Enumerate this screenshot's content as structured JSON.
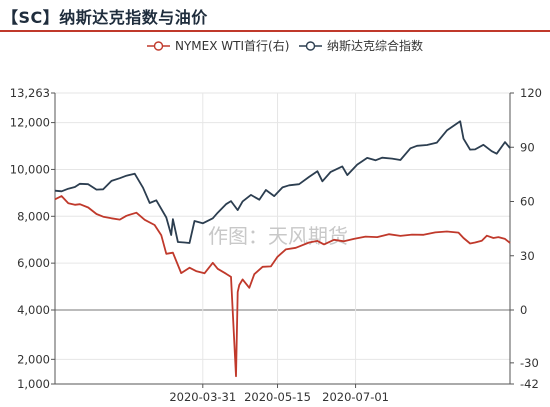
{
  "header": {
    "title": "【SC】纳斯达克指数与油价"
  },
  "watermark": "作图：天风期货",
  "chart_data": {
    "type": "line",
    "title": "【SC】纳斯达克指数与油价",
    "legend_placement": "top-center",
    "x_ticks": [
      "2020-03-31",
      "2020-05-15",
      "2020-07-01"
    ],
    "y_left": {
      "ticks": [
        1000,
        2000,
        4000,
        6000,
        8000,
        10000,
        12000,
        13263
      ],
      "range": [
        1000,
        13263
      ],
      "break_at": 4000
    },
    "y_right": {
      "ticks": [
        -42,
        -30,
        0,
        30,
        60,
        90,
        120
      ],
      "range": [
        -42,
        120
      ]
    },
    "grid": true,
    "colors": {
      "oil": "#c0392b",
      "nasdaq": "#2c3e50"
    },
    "series": [
      {
        "name": "NYMEX WTI首行(右)",
        "axis": "right",
        "x": [
          "2020-01-02",
          "2020-01-06",
          "2020-01-10",
          "2020-01-14",
          "2020-01-17",
          "2020-01-22",
          "2020-01-27",
          "2020-01-31",
          "2020-02-05",
          "2020-02-10",
          "2020-02-14",
          "2020-02-20",
          "2020-02-25",
          "2020-03-02",
          "2020-03-06",
          "2020-03-09",
          "2020-03-13",
          "2020-03-18",
          "2020-03-23",
          "2020-03-27",
          "2020-04-01",
          "2020-04-06",
          "2020-04-09",
          "2020-04-14",
          "2020-04-17",
          "2020-04-20",
          "2020-04-21",
          "2020-04-22",
          "2020-04-24",
          "2020-04-28",
          "2020-05-01",
          "2020-05-06",
          "2020-05-11",
          "2020-05-15",
          "2020-05-20",
          "2020-05-26",
          "2020-05-29",
          "2020-06-03",
          "2020-06-08",
          "2020-06-12",
          "2020-06-18",
          "2020-06-24",
          "2020-06-30",
          "2020-07-07",
          "2020-07-14",
          "2020-07-21",
          "2020-07-28",
          "2020-08-04",
          "2020-08-11",
          "2020-08-18",
          "2020-08-25",
          "2020-09-01",
          "2020-09-04",
          "2020-09-08",
          "2020-09-11",
          "2020-09-15",
          "2020-09-18",
          "2020-09-22",
          "2020-09-25",
          "2020-09-29",
          "2020-10-02"
        ],
        "values": [
          61.2,
          63.0,
          59.0,
          58.2,
          58.5,
          56.7,
          53.1,
          51.6,
          50.7,
          50.0,
          52.1,
          53.8,
          49.9,
          47.0,
          41.3,
          31.1,
          31.7,
          20.4,
          23.4,
          21.5,
          20.3,
          26.1,
          22.8,
          20.1,
          18.3,
          -37.6,
          10.0,
          13.8,
          16.9,
          12.3,
          19.8,
          23.9,
          24.1,
          29.4,
          33.5,
          34.4,
          35.5,
          37.3,
          38.2,
          36.3,
          38.8,
          38.0,
          39.3,
          40.6,
          40.3,
          41.9,
          41.0,
          41.7,
          41.6,
          42.9,
          43.4,
          42.8,
          39.8,
          36.8,
          37.3,
          38.3,
          41.1,
          39.8,
          40.3,
          39.3,
          37.1
        ]
      },
      {
        "name": "纳斯达克综合指数",
        "axis": "left",
        "x": [
          "2020-01-02",
          "2020-01-06",
          "2020-01-10",
          "2020-01-14",
          "2020-01-17",
          "2020-01-22",
          "2020-01-27",
          "2020-01-31",
          "2020-02-05",
          "2020-02-10",
          "2020-02-14",
          "2020-02-19",
          "2020-02-24",
          "2020-02-28",
          "2020-03-03",
          "2020-03-09",
          "2020-03-12",
          "2020-03-13",
          "2020-03-16",
          "2020-03-20",
          "2020-03-23",
          "2020-03-26",
          "2020-03-31",
          "2020-04-06",
          "2020-04-09",
          "2020-04-14",
          "2020-04-17",
          "2020-04-21",
          "2020-04-24",
          "2020-04-29",
          "2020-05-04",
          "2020-05-08",
          "2020-05-13",
          "2020-05-18",
          "2020-05-22",
          "2020-05-28",
          "2020-06-03",
          "2020-06-08",
          "2020-06-11",
          "2020-06-16",
          "2020-06-23",
          "2020-06-26",
          "2020-07-02",
          "2020-07-08",
          "2020-07-13",
          "2020-07-17",
          "2020-07-23",
          "2020-07-28",
          "2020-08-03",
          "2020-08-07",
          "2020-08-13",
          "2020-08-19",
          "2020-08-25",
          "2020-09-02",
          "2020-09-04",
          "2020-09-08",
          "2020-09-11",
          "2020-09-16",
          "2020-09-21",
          "2020-09-24",
          "2020-09-29",
          "2020-10-02"
        ],
        "values": [
          9093,
          9069,
          9179,
          9252,
          9389,
          9370,
          9140,
          9151,
          9509,
          9628,
          9732,
          9817,
          9221,
          8567,
          8684,
          7950,
          7201,
          7875,
          6904,
          6880,
          6860,
          7797,
          7700,
          7913,
          8153,
          8515,
          8650,
          8263,
          8634,
          8914,
          8710,
          9121,
          8863,
          9235,
          9324,
          9368,
          9683,
          9925,
          9492,
          9895,
          10131,
          9757,
          10207,
          10492,
          10391,
          10503,
          10461,
          10402,
          10903,
          11011,
          11042,
          11146,
          11666,
          12056,
          11313,
          10847,
          10854,
          11050,
          10778,
          10672,
          11167,
          10913
        ]
      }
    ]
  }
}
